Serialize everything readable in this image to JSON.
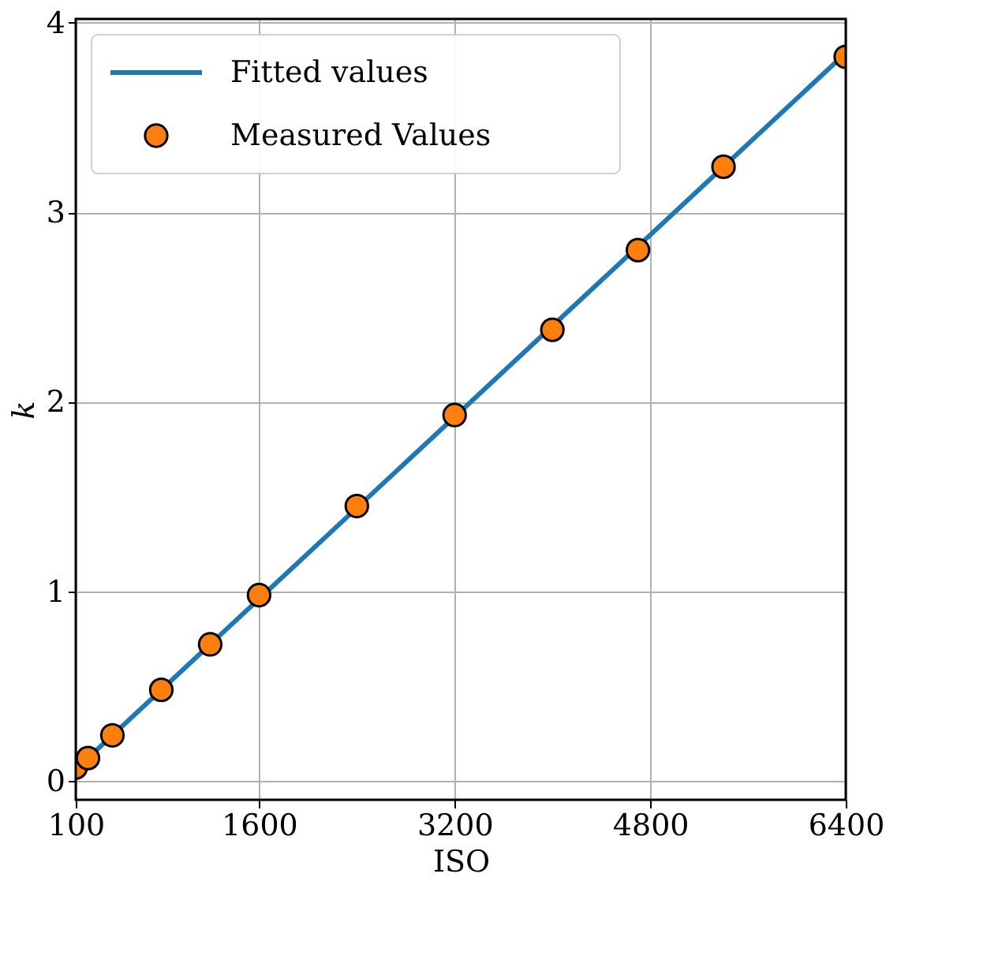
{
  "chart_data": {
    "type": "scatter",
    "xlabel": "ISO",
    "ylabel": "k",
    "xlim": [
      100,
      6400
    ],
    "ylim": [
      -0.1,
      4.02
    ],
    "xticks": [
      100,
      1600,
      3200,
      4800,
      6400
    ],
    "yticks": [
      0,
      1,
      2,
      3,
      4
    ],
    "grid": true,
    "legend": "top left",
    "series": [
      {
        "name": "Fitted values",
        "type": "line",
        "color": "#1f77b4",
        "line_style": "solid",
        "marker": "none",
        "x": [
          100,
          6400
        ],
        "values": [
          0.06,
          3.84
        ]
      },
      {
        "name": "Measured Values",
        "marker": "circle",
        "color": "#ff7f0e",
        "x": [
          100,
          200,
          400,
          800,
          1200,
          1600,
          2400,
          3200,
          4000,
          4700,
          5400,
          6400
        ],
        "values": [
          0.07,
          0.12,
          0.24,
          0.48,
          0.72,
          0.98,
          1.45,
          1.93,
          2.38,
          2.8,
          3.24,
          3.82
        ]
      }
    ]
  }
}
